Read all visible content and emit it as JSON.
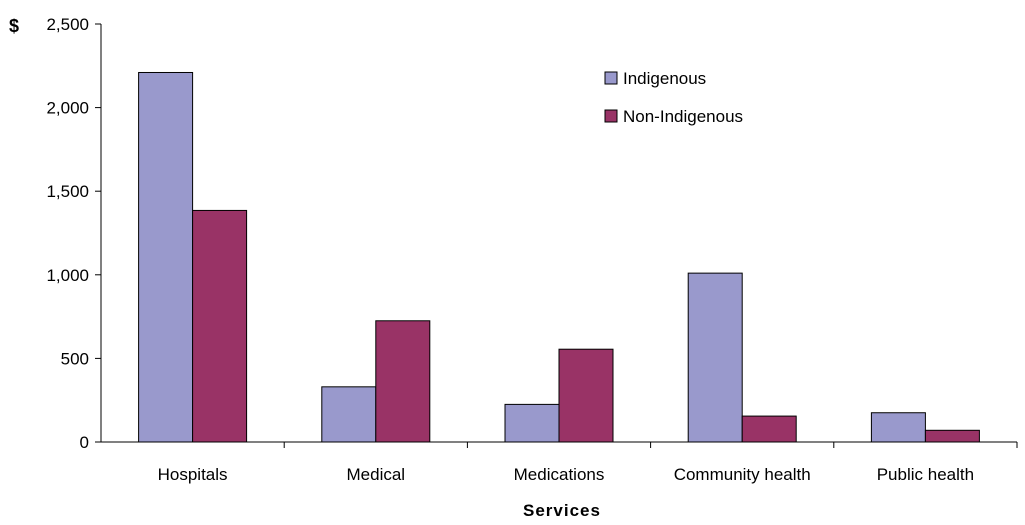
{
  "chart_data": {
    "type": "bar",
    "title": "",
    "ylabel": "$",
    "xlabel": "Services",
    "categories": [
      "Hospitals",
      "Medical",
      "Medications",
      "Community health",
      "Public health"
    ],
    "series": [
      {
        "name": "Indigenous",
        "color": "#9999cc",
        "values": [
          2210,
          330,
          225,
          1010,
          175
        ]
      },
      {
        "name": "Non-Indigenous",
        "color": "#993366",
        "values": [
          1385,
          725,
          555,
          155,
          70
        ]
      }
    ],
    "ylim": [
      0,
      2500
    ],
    "yticks": [
      0,
      500,
      1000,
      1500,
      2000,
      2500
    ],
    "ytick_labels": [
      "0",
      "500",
      "1,000",
      "1,500",
      "2,000",
      "2,500"
    ],
    "legend_position": "top-right",
    "grid": false
  }
}
